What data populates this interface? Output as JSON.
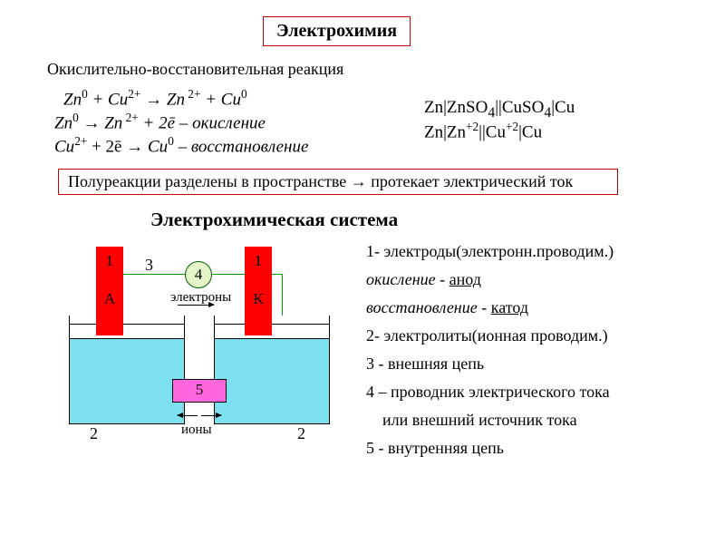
{
  "colors": {
    "border_red": "#c00000",
    "electrode_red": "#ff0000",
    "liquid_cyan": "#7de0f0",
    "bridge_pink": "#ff66dd",
    "wire_green": "#00a000",
    "meter_fill": "#e6f5c8",
    "text": "#000000",
    "bg": "#ffffff"
  },
  "typography": {
    "family": "Times New Roman",
    "title_size": 20,
    "body_size": 18,
    "eq_size": 19,
    "small_size": 15
  },
  "title": "Электрохимия",
  "redox_heading": "Окислительно-восстановительная реакция",
  "equations": {
    "overall_html": "Zn<sup>0</sup> + Cu<sup>2+</sup> &rarr; Zn<sup> 2+</sup> + Cu<sup>0</sup>",
    "oxidation_html": "Zn<sup>0</sup> &rarr; Zn<sup> 2+</sup> + 2&#275; &ndash; <span class='lbl'>окисление</span>",
    "reduction_html": "<span class='sym'>Cu</span><sup>2+</sup> + 2&#275; &rarr; <span class='sym'>Cu</span><sup>0</sup> &ndash; <span class='lbl'>восстановление</span>"
  },
  "cell_notation": {
    "line1_html": "Zn|ZnSO<sub>4</sub>||CuSO<sub>4</sub>|Cu",
    "line2_html": "Zn|Zn<sup>+2</sup>||Cu<sup>+2</sup>|Cu"
  },
  "half_reactions_box": "Полуреакции разделены в пространстве  →  протекает электрический ток",
  "system_title": "Электрохимическая система",
  "diagram": {
    "numbers": {
      "one": "1",
      "two": "2",
      "three": "3",
      "four": "4",
      "five": "5"
    },
    "anode_mark": "А",
    "cathode_mark": "К",
    "electrons_label": "электроны",
    "ions_label": "ионы",
    "wire_color": "#00a000",
    "electrode_color": "#ff0000",
    "liquid_color": "#7de0f0",
    "bridge_color": "#ff66dd"
  },
  "legend": {
    "l1_html": "1- электроды(электронн.проводим.)",
    "l1a_html": "<span class='it'>окисление</span> - <span class='u'>анод</span>",
    "l1b_html": "<span class='it'>восстановление</span> - <span class='u'>катод</span>",
    "l2": "2- электролиты(ионная проводим.)",
    "l3": "3 - внешняя цепь",
    "l4a": "4 – проводник электрического тока",
    "l4b": "или внешний источник тока",
    "l5": "5 - внутренняя цепь"
  }
}
